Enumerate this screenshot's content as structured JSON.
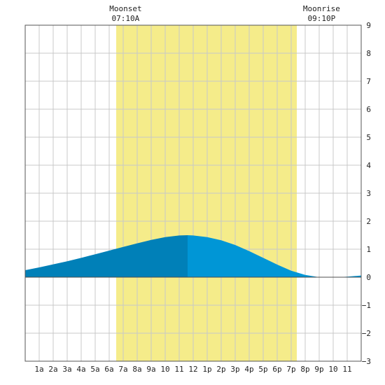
{
  "chart_data": {
    "type": "area",
    "x_unit": "hours since midnight",
    "x_range": [
      0,
      24
    ],
    "ylim": [
      -3,
      9
    ],
    "y_ticks": [
      -3,
      -2,
      -1,
      0,
      1,
      2,
      3,
      4,
      5,
      6,
      7,
      8,
      9
    ],
    "x_tick_labels": [
      "1a",
      "2a",
      "3a",
      "4a",
      "5a",
      "6a",
      "7a",
      "8a",
      "9a",
      "10",
      "11",
      "12",
      "1p",
      "2p",
      "3p",
      "4p",
      "5p",
      "6p",
      "7p",
      "8p",
      "9p",
      "10",
      "11"
    ],
    "grid": true,
    "daylight_band": {
      "start": 6.5,
      "end": 19.4
    },
    "annotations": [
      {
        "name": "moonset",
        "title": "Moonset",
        "time": "07:10A",
        "x": 7.17
      },
      {
        "name": "moonrise",
        "title": "Moonrise",
        "time": "09:10P",
        "x": 21.17
      }
    ],
    "series": [
      {
        "points": [
          [
            0,
            0.25
          ],
          [
            1,
            0.35
          ],
          [
            2,
            0.46
          ],
          [
            3,
            0.57
          ],
          [
            4,
            0.69
          ],
          [
            5,
            0.82
          ],
          [
            6,
            0.95
          ],
          [
            7,
            1.08
          ],
          [
            8,
            1.21
          ],
          [
            9,
            1.33
          ],
          [
            10,
            1.43
          ],
          [
            11,
            1.49
          ],
          [
            11.6,
            1.5
          ],
          [
            12,
            1.49
          ],
          [
            13,
            1.43
          ],
          [
            14,
            1.32
          ],
          [
            15,
            1.15
          ],
          [
            16,
            0.93
          ],
          [
            17,
            0.69
          ],
          [
            18,
            0.45
          ],
          [
            19,
            0.23
          ],
          [
            20,
            0.08
          ],
          [
            21,
            0.0
          ],
          [
            22,
            -0.01
          ],
          [
            23,
            0.02
          ],
          [
            24,
            0.06
          ]
        ],
        "split_at": 11.6,
        "color_before": "#0080b8",
        "color_after": "#0096d6"
      }
    ],
    "colors": {
      "daylight": "#f5ec8a",
      "grid": "#c8c8c8",
      "frame": "#555555",
      "zero_line": "#4f4f4f"
    }
  }
}
